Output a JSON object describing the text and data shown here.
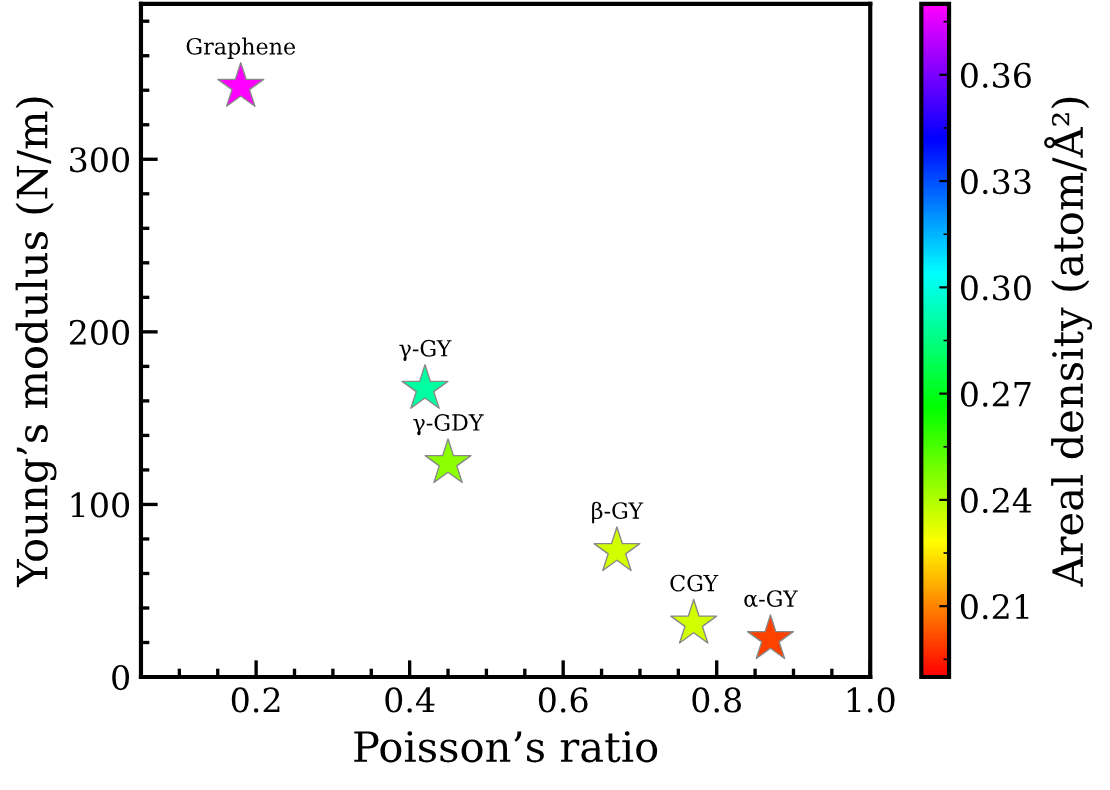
{
  "chart_data": {
    "type": "scatter",
    "xlabel": "Poisson’s ratio",
    "ylabel": "Young’s modulus (N/m)",
    "clabel": "Areal density (atom/Å²)",
    "x": [
      0.18,
      0.42,
      0.45,
      0.67,
      0.77,
      0.87
    ],
    "values": [
      342,
      167,
      124,
      73,
      31,
      22
    ],
    "cvalues": [
      0.38,
      0.29,
      0.245,
      0.235,
      0.235,
      0.2
    ],
    "annotations": [
      {
        "text": "Graphene",
        "x": 0.18,
        "y": 342
      },
      {
        "text": "γ-GY",
        "x": 0.42,
        "y": 167
      },
      {
        "text": "γ-GDY",
        "x": 0.45,
        "y": 124
      },
      {
        "text": "β-GY",
        "x": 0.67,
        "y": 73
      },
      {
        "text": "CGY",
        "x": 0.77,
        "y": 31
      },
      {
        "text": "α-GY",
        "x": 0.87,
        "y": 22
      }
    ],
    "marker": "star",
    "grid": false,
    "xlim": [
      0.05,
      1.0
    ],
    "xticks": [
      0.2,
      0.4,
      0.6,
      0.8,
      {
        "value": 1,
        "label": "1.0"
      }
    ],
    "ylim": [
      0,
      390
    ],
    "yticks": [
      0,
      100,
      200,
      300
    ],
    "clim": [
      0.19,
      0.38
    ],
    "cticks": [
      0.21,
      0.24,
      0.27,
      {
        "value": 0.3,
        "label": "0.30"
      },
      0.33,
      0.36
    ]
  }
}
